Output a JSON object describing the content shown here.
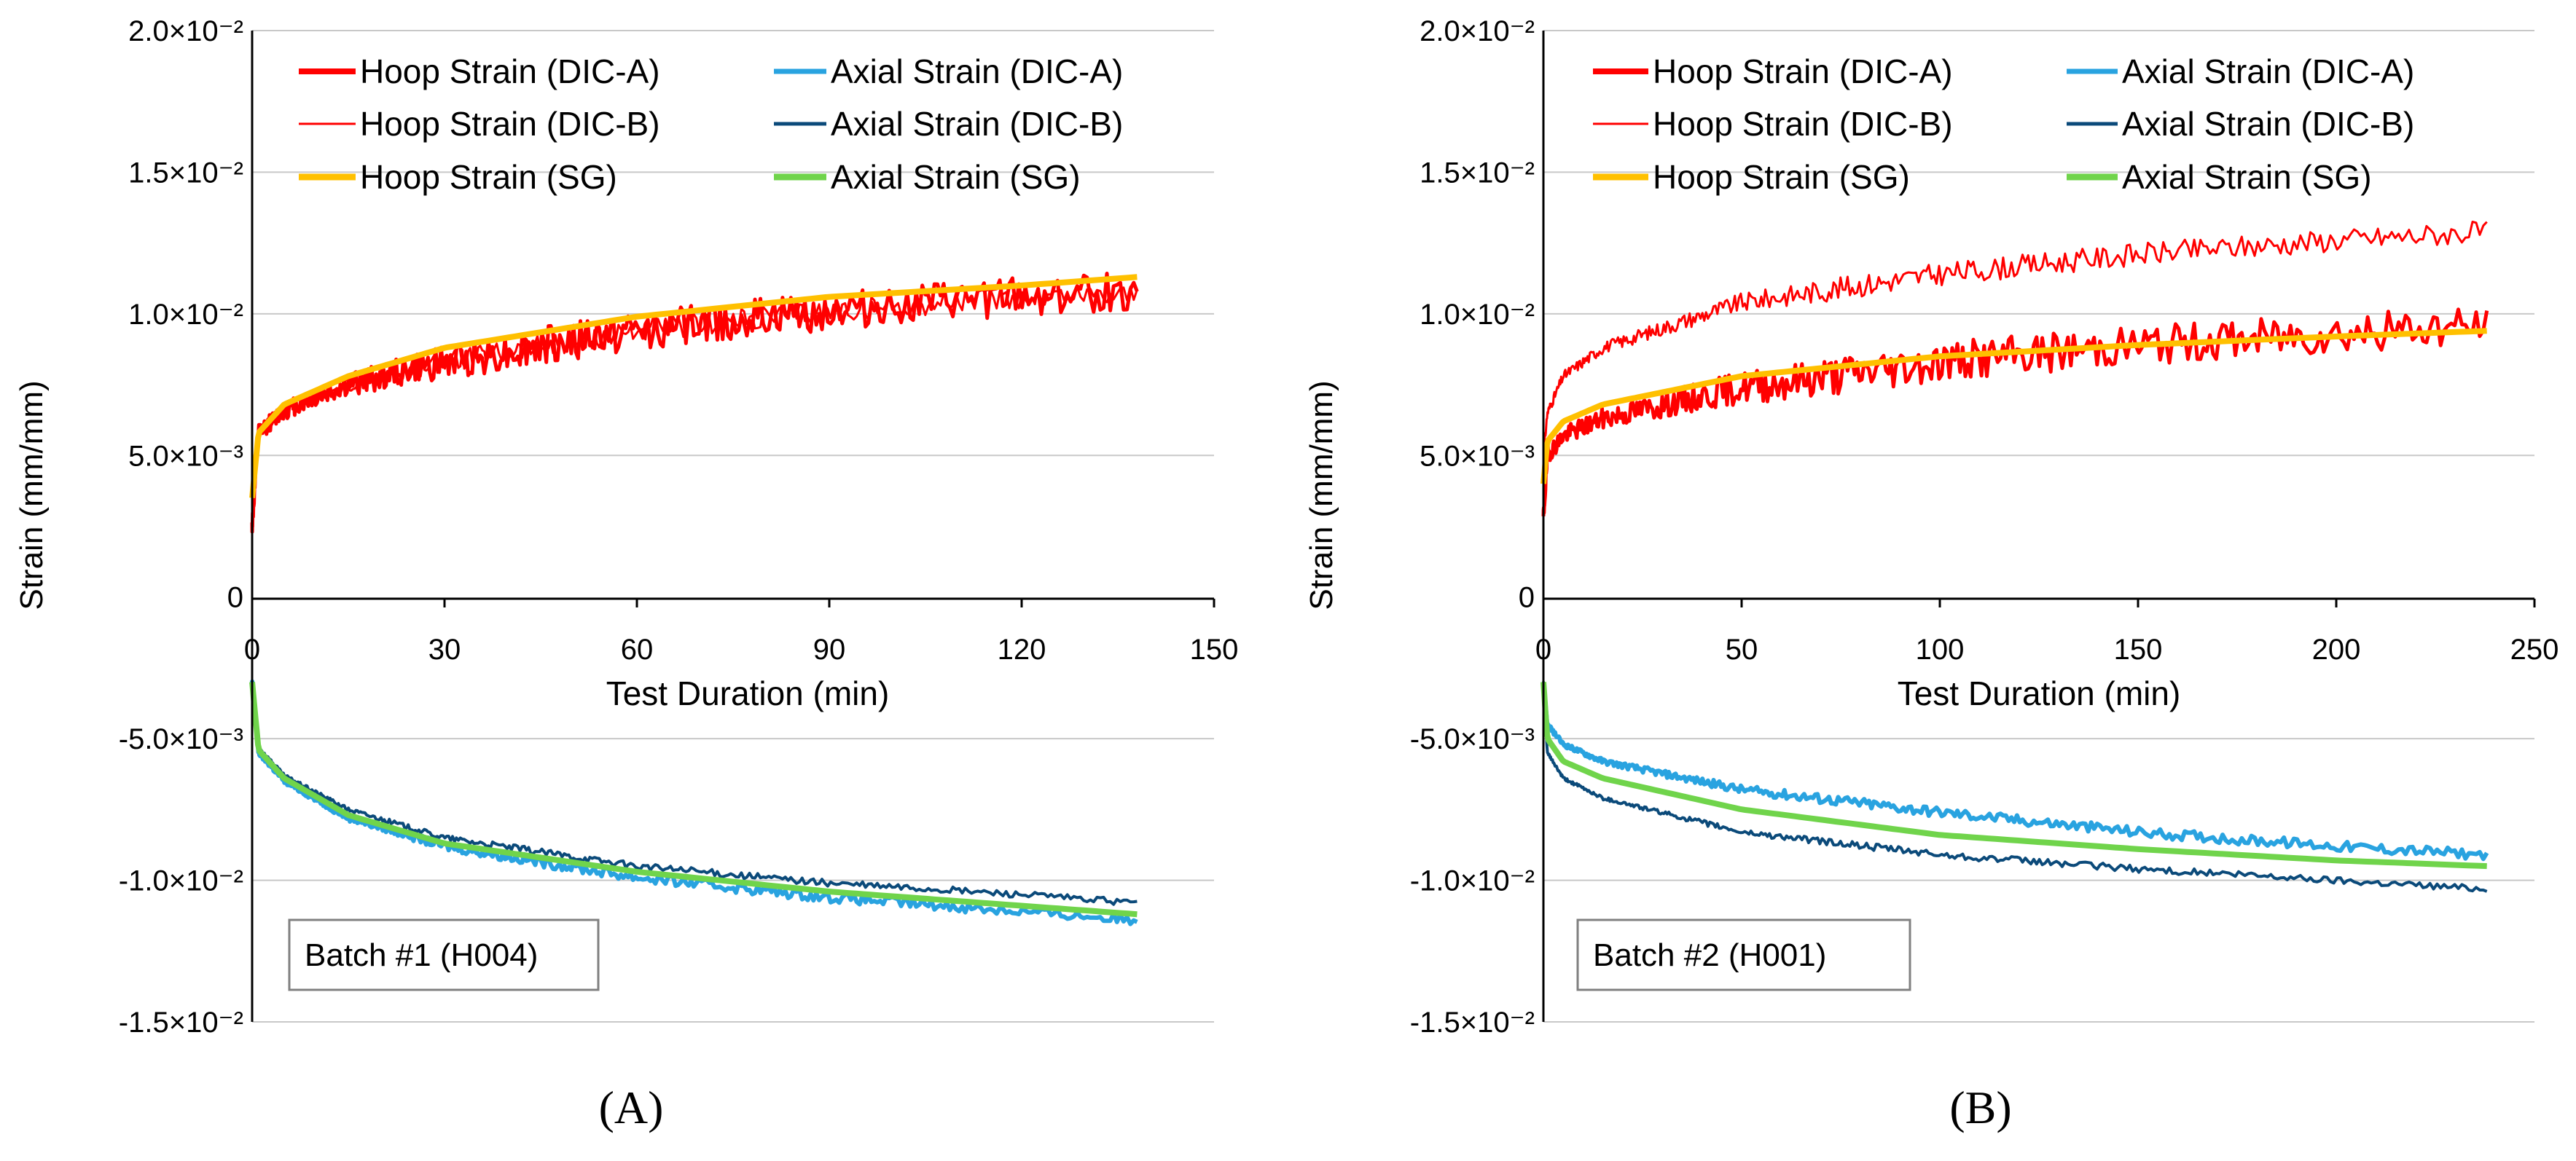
{
  "colors": {
    "hoop_dic": "#ff0000",
    "hoop_sg": "#ffc000",
    "axial_dic_a": "#29a3e0",
    "axial_dic_b": "#0b4a7a",
    "axial_sg": "#70d44b",
    "grid": "#c8c8c8",
    "axis": "#000000"
  },
  "chart_data": [
    {
      "type": "line",
      "panel_label": "(A)",
      "ylabel": "Strain (mm/mm)",
      "xlabel": "Test Duration (min)",
      "xlim": [
        0,
        150
      ],
      "ylim": [
        -0.015,
        0.02
      ],
      "x_ticks": [
        "0",
        "30",
        "60",
        "90",
        "120",
        "150"
      ],
      "y_ticks": [
        "2.0×10⁻²",
        "1.5×10⁻²",
        "1.0×10⁻²",
        "5.0×10⁻³",
        "0",
        "-5.0×10⁻³",
        "-1.0×10⁻²",
        "-1.5×10⁻²"
      ],
      "grid": true,
      "legend_position": "top",
      "annotation": "Batch #1 (H004)",
      "x_end": 138,
      "series": [
        {
          "name": "Hoop Strain (DIC-A)",
          "x": [
            0,
            1,
            5,
            15,
            30,
            60,
            90,
            120,
            138
          ],
          "values": [
            0.0025,
            0.0058,
            0.0066,
            0.0075,
            0.0083,
            0.0094,
            0.0101,
            0.0106,
            0.0108
          ]
        },
        {
          "name": "Hoop Strain (DIC-B)",
          "x": [
            0,
            1,
            5,
            15,
            30,
            60,
            90,
            120,
            138
          ],
          "values": [
            0.0025,
            0.0058,
            0.0066,
            0.0075,
            0.0083,
            0.0094,
            0.0101,
            0.0106,
            0.0108
          ]
        },
        {
          "name": "Hoop Strain (SG)",
          "x": [
            0,
            1,
            5,
            15,
            30,
            60,
            90,
            120,
            138
          ],
          "values": [
            0.0035,
            0.0058,
            0.0068,
            0.0078,
            0.0088,
            0.0099,
            0.0106,
            0.011,
            0.0113
          ]
        },
        {
          "name": "Axial Strain (DIC-A)",
          "x": [
            0,
            1,
            5,
            15,
            30,
            60,
            90,
            120,
            138
          ],
          "values": [
            -0.003,
            -0.0055,
            -0.0065,
            -0.0078,
            -0.0088,
            -0.0099,
            -0.0106,
            -0.0111,
            -0.0114
          ]
        },
        {
          "name": "Axial Strain (DIC-B)",
          "x": [
            0,
            1,
            5,
            15,
            30,
            60,
            90,
            120,
            138
          ],
          "values": [
            -0.003,
            -0.0053,
            -0.0063,
            -0.0075,
            -0.0085,
            -0.0095,
            -0.0101,
            -0.0105,
            -0.0108
          ]
        },
        {
          "name": "Axial Strain (SG)",
          "x": [
            0,
            1,
            5,
            15,
            30,
            60,
            90,
            120,
            138
          ],
          "values": [
            -0.003,
            -0.0054,
            -0.0064,
            -0.0077,
            -0.0087,
            -0.0097,
            -0.0104,
            -0.0109,
            -0.0112
          ]
        }
      ]
    },
    {
      "type": "line",
      "panel_label": "(B)",
      "ylabel": "Strain (mm/mm)",
      "xlabel": "Test Duration (min)",
      "xlim": [
        0,
        250
      ],
      "ylim": [
        -0.015,
        0.02
      ],
      "x_ticks": [
        "0",
        "50",
        "100",
        "150",
        "200",
        "250"
      ],
      "y_ticks": [
        "2.0×10⁻²",
        "1.5×10⁻²",
        "1.0×10⁻²",
        "5.0×10⁻³",
        "0",
        "-5.0×10⁻³",
        "-1.0×10⁻²",
        "-1.5×10⁻²"
      ],
      "grid": true,
      "legend_position": "top",
      "annotation": "Batch #2 (H001)",
      "x_end": 238,
      "series": [
        {
          "name": "Hoop Strain (DIC-A)",
          "x": [
            0,
            1,
            5,
            15,
            50,
            100,
            150,
            200,
            238
          ],
          "values": [
            0.0028,
            0.005,
            0.0057,
            0.0063,
            0.0074,
            0.0083,
            0.0089,
            0.0093,
            0.0096
          ]
        },
        {
          "name": "Hoop Strain (DIC-B)",
          "x": [
            0,
            1,
            5,
            15,
            50,
            100,
            150,
            200,
            238
          ],
          "values": [
            0.005,
            0.0065,
            0.0078,
            0.0088,
            0.0104,
            0.0114,
            0.0121,
            0.0126,
            0.0129
          ]
        },
        {
          "name": "Hoop Strain (SG)",
          "x": [
            0,
            1,
            5,
            15,
            50,
            100,
            150,
            200,
            238
          ],
          "values": [
            0.004,
            0.0055,
            0.0062,
            0.0068,
            0.0078,
            0.0085,
            0.0089,
            0.0092,
            0.0094
          ]
        },
        {
          "name": "Axial Strain (DIC-A)",
          "x": [
            0,
            1,
            5,
            15,
            50,
            100,
            150,
            200,
            238
          ],
          "values": [
            -0.003,
            -0.0045,
            -0.0052,
            -0.0058,
            -0.0068,
            -0.0076,
            -0.0083,
            -0.0088,
            -0.0091
          ]
        },
        {
          "name": "Axial Strain (DIC-B)",
          "x": [
            0,
            1,
            5,
            15,
            50,
            100,
            150,
            200,
            238
          ],
          "values": [
            -0.003,
            -0.0055,
            -0.0064,
            -0.0071,
            -0.0083,
            -0.0091,
            -0.0096,
            -0.01,
            -0.0103
          ]
        },
        {
          "name": "Axial Strain (SG)",
          "x": [
            0,
            1,
            5,
            15,
            50,
            100,
            150,
            200,
            238
          ],
          "values": [
            -0.003,
            -0.005,
            -0.0058,
            -0.0064,
            -0.0075,
            -0.0084,
            -0.0089,
            -0.0093,
            -0.0095
          ]
        }
      ]
    }
  ]
}
